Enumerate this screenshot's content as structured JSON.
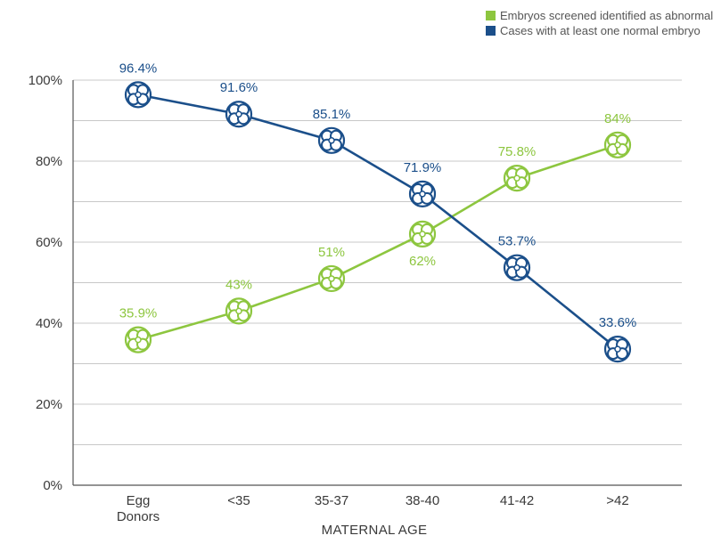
{
  "colors": {
    "abnormal": "#8DC63F",
    "normal": "#1B4F8A",
    "grid": "#c8c8c8",
    "axis": "#555555",
    "text": "#3a3a3a"
  },
  "chart_data": {
    "type": "line",
    "title": "",
    "xlabel": "MATERNAL AGE",
    "ylabel": "",
    "ylim": [
      0,
      100
    ],
    "y_ticks": [
      "0%",
      "20%",
      "40%",
      "60%",
      "80%",
      "100%"
    ],
    "grid": true,
    "legend_position": "top-right",
    "marker": "embryo-icon",
    "categories": [
      [
        "Egg",
        "Donors"
      ],
      [
        "<35"
      ],
      [
        "35-37"
      ],
      [
        "38-40"
      ],
      [
        "41-42"
      ],
      [
        ">42"
      ]
    ],
    "series": [
      {
        "name": "Embryos screened identified as abnormal",
        "color": "#8DC63F",
        "values": [
          35.9,
          43,
          51,
          62,
          75.8,
          84
        ],
        "labels": [
          "35.9%",
          "43%",
          "51%",
          "62%",
          "75.8%",
          "84%"
        ],
        "label_positions": [
          "above",
          "above",
          "above",
          "below",
          "above",
          "above"
        ]
      },
      {
        "name": "Cases with at least one normal embryo",
        "color": "#1B4F8A",
        "values": [
          96.4,
          91.6,
          85.1,
          71.9,
          53.7,
          33.6
        ],
        "labels": [
          "96.4%",
          "91.6%",
          "85.1%",
          "71.9%",
          "53.7%",
          "33.6%"
        ],
        "label_positions": [
          "above",
          "above",
          "above",
          "above",
          "above",
          "above"
        ]
      }
    ]
  }
}
